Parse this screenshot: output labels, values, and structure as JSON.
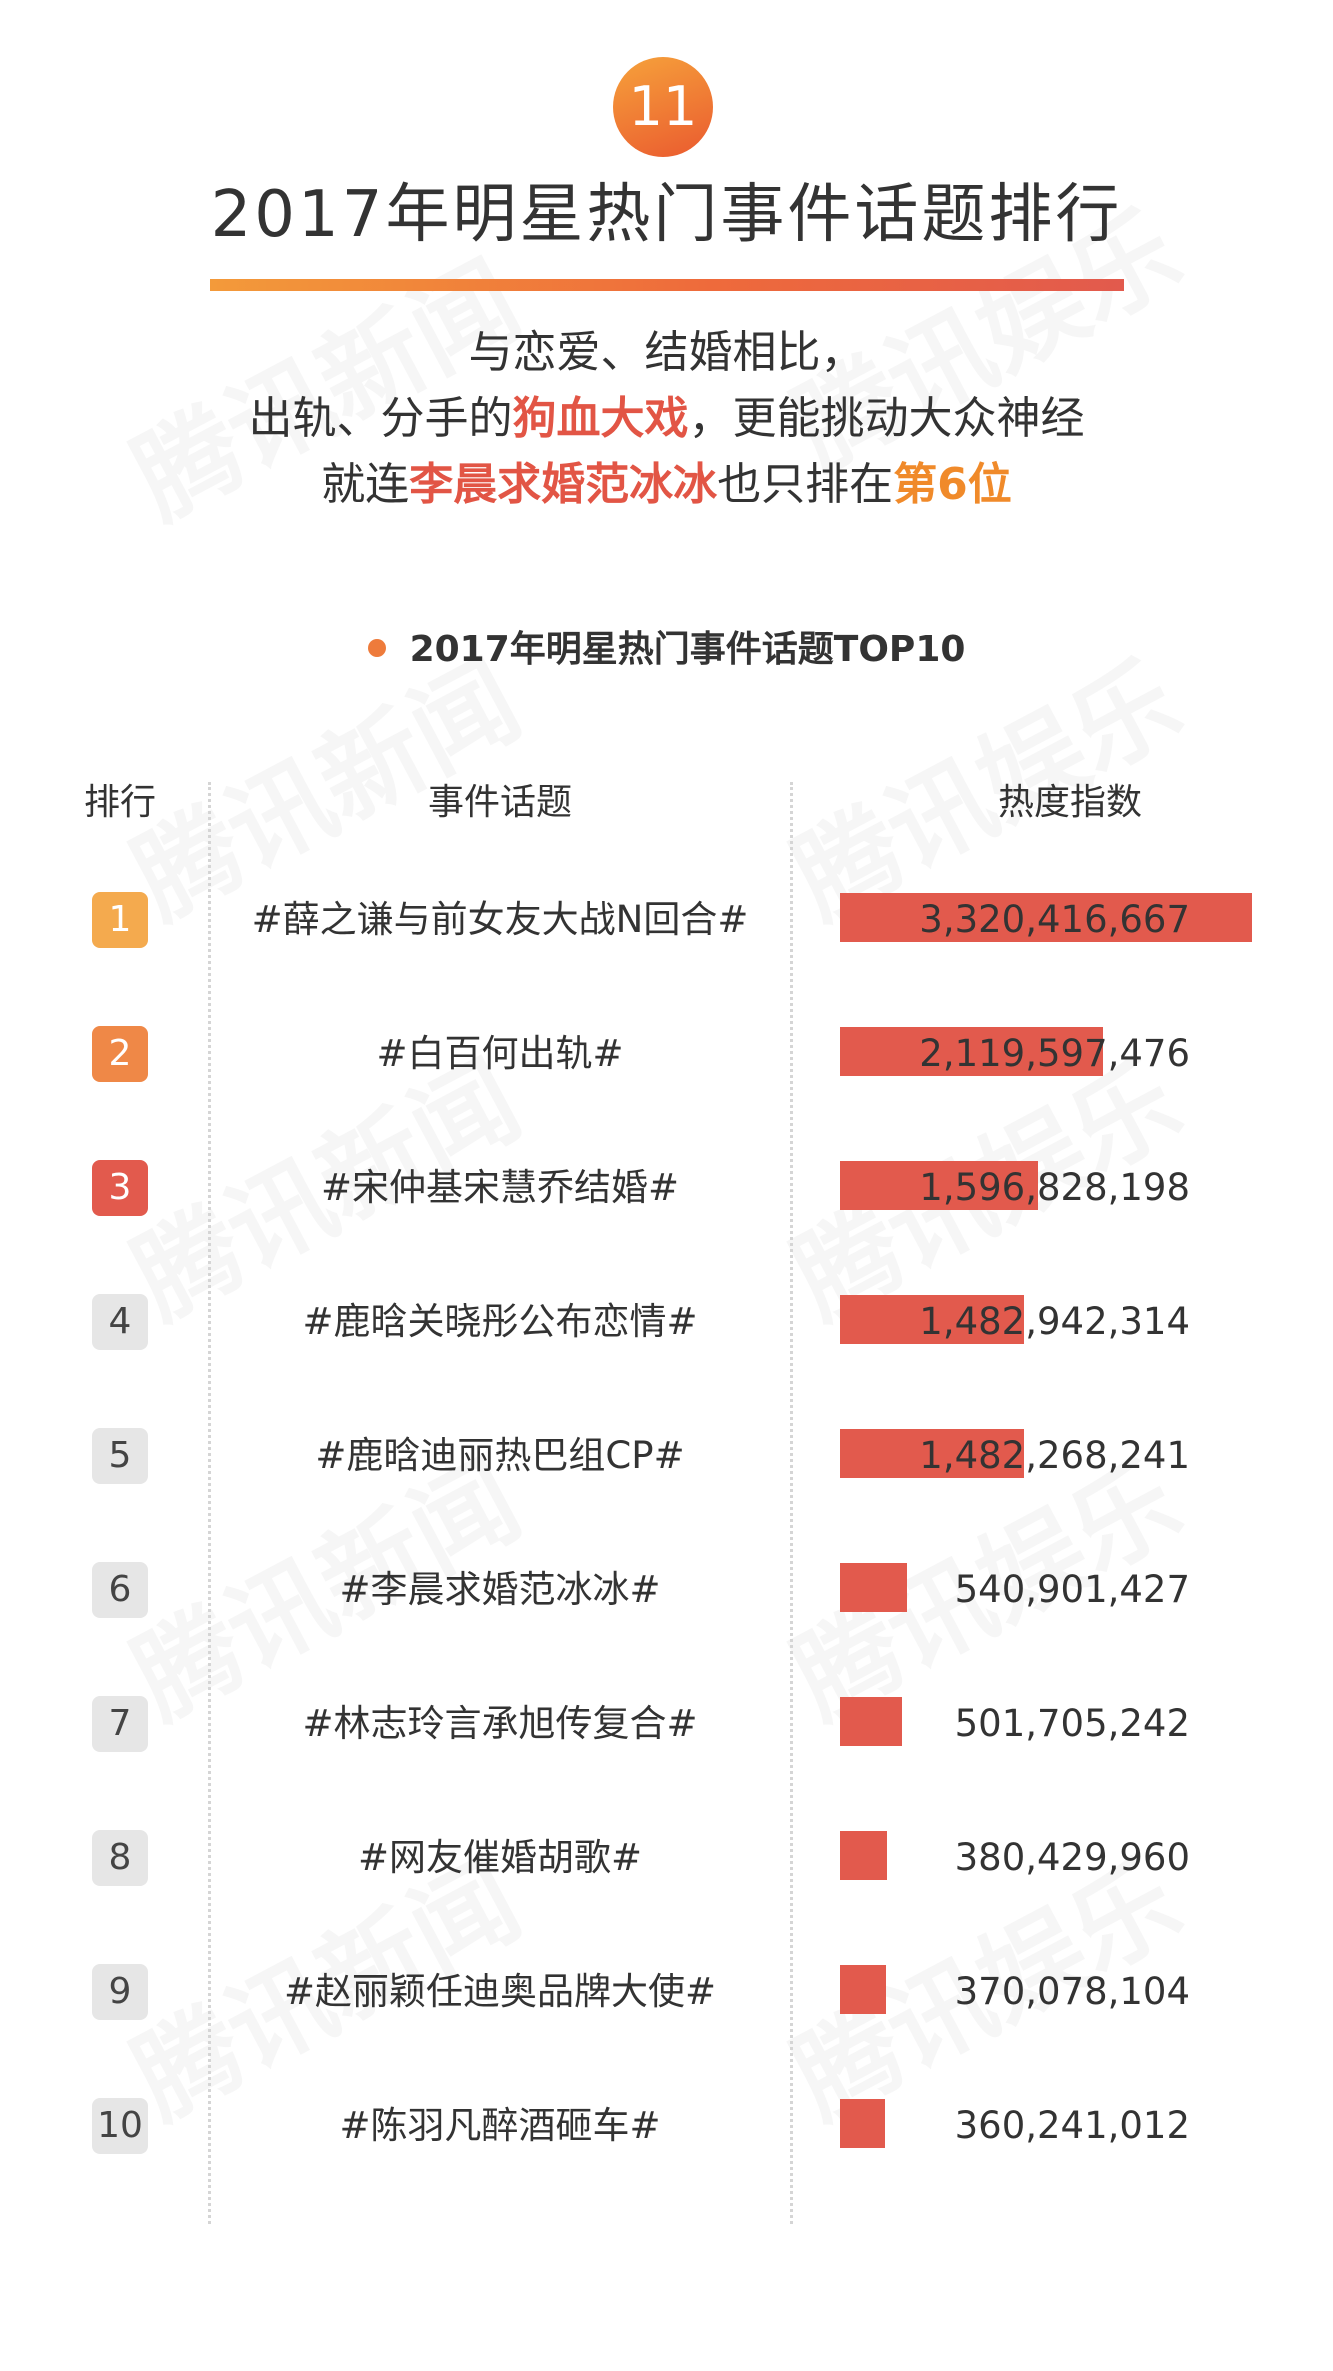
{
  "badge_number": "11",
  "title": "2017年明星热门事件话题排行",
  "intro": {
    "line1": "与恋爱、结婚相比，",
    "line2_before": "出轨、分手的",
    "line2_highlight": "狗血大戏",
    "line2_after": "，更能挑动大众神经",
    "line3_before": "就连",
    "line3_highlight": "李晨求婚范冰冰",
    "line3_middle": "也只排在",
    "line3_highlight2": "第6位"
  },
  "watermark": {
    "left_text": "腾讯新闻",
    "right_text": "腾讯娱乐"
  },
  "colors": {
    "accent_red": "#e25a4d",
    "accent_orange": "#f08a2a",
    "rank1": "#f4aa4e",
    "rank2": "#ef8847",
    "rank3": "#e25a4d",
    "rank_other": "#e6e6e6"
  },
  "chart_data": {
    "type": "bar",
    "title": "2017年明星热门事件话题TOP10",
    "columns": {
      "rank": "排行",
      "topic": "事件话题",
      "value": "热度指数"
    },
    "xlim": [
      0,
      3320416667
    ],
    "rows": [
      {
        "rank": "1",
        "topic": "#薛之谦与前女友大战N回合#",
        "value": 3320416667,
        "label": "3,320,416,667"
      },
      {
        "rank": "2",
        "topic": "#白百何出轨#",
        "value": 2119597476,
        "label": "2,119,597,476"
      },
      {
        "rank": "3",
        "topic": "#宋仲基宋慧乔结婚#",
        "value": 1596828198,
        "label": "1,596,828,198"
      },
      {
        "rank": "4",
        "topic": "#鹿晗关晓彤公布恋情#",
        "value": 1482942314,
        "label": "1,482,942,314"
      },
      {
        "rank": "5",
        "topic": "#鹿晗迪丽热巴组CP#",
        "value": 1482268241,
        "label": "1,482,268,241"
      },
      {
        "rank": "6",
        "topic": "#李晨求婚范冰冰#",
        "value": 540901427,
        "label": "540,901,427"
      },
      {
        "rank": "7",
        "topic": "#林志玲言承旭传复合#",
        "value": 501705242,
        "label": "501,705,242"
      },
      {
        "rank": "8",
        "topic": "#网友催婚胡歌#",
        "value": 380429960,
        "label": "380,429,960"
      },
      {
        "rank": "9",
        "topic": "#赵丽颖任迪奥品牌大使#",
        "value": 370078104,
        "label": "370,078,104"
      },
      {
        "rank": "10",
        "topic": "#陈羽凡醉酒砸车#",
        "value": 360241012,
        "label": "360,241,012"
      }
    ]
  }
}
